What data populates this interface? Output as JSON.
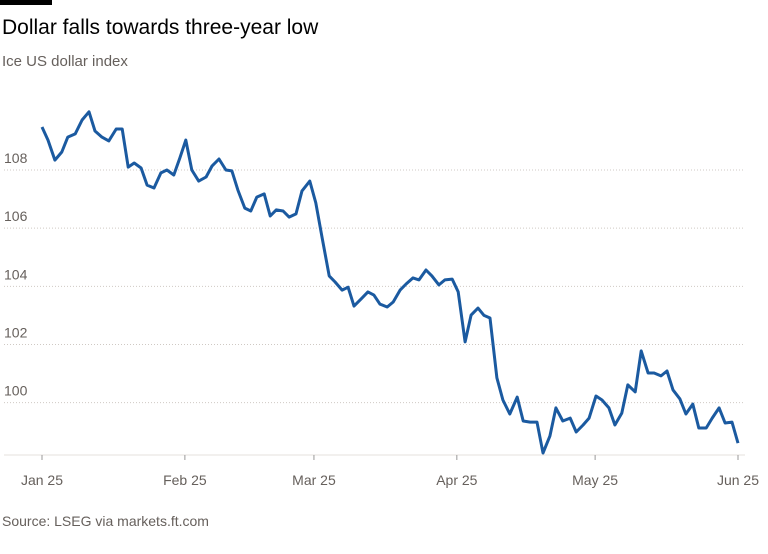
{
  "chart_data": {
    "type": "line",
    "title": "Dollar falls towards three-year low",
    "subtitle": "Ice US dollar index",
    "source": "Source: LSEG via markets.ft.com",
    "x": [
      0,
      1.3,
      2.8,
      4.3,
      5.6,
      7.2,
      8.7,
      10.2,
      11.5,
      13.0,
      14.5,
      16.1,
      17.4,
      18.7,
      20.0,
      21.5,
      22.8,
      24.3,
      25.8,
      27.1,
      28.6,
      29.9,
      31.2,
      32.5,
      34.0,
      35.6,
      36.9,
      38.4,
      39.9,
      41.2,
      42.5,
      44.0,
      45.3,
      46.6,
      48.2,
      49.5,
      50.8,
      52.3,
      53.6,
      55.1,
      56.4,
      58.1,
      59.4,
      60.7,
      62.3,
      63.6,
      65.1,
      66.4,
      67.7,
      69.2,
      70.7,
      72.0,
      73.3,
      74.9,
      76.2,
      77.7,
      79.0,
      80.5,
      81.8,
      83.3,
      84.6,
      86.1,
      87.4,
      89.0,
      90.3,
      91.8,
      93.1,
      94.6,
      95.9,
      97.2,
      98.7,
      100.0,
      101.5,
      103.1,
      104.4,
      105.9,
      107.4,
      108.7,
      110.2,
      111.5,
      113.0,
      114.6,
      115.9,
      117.4,
      118.7,
      120.2,
      121.5,
      123.0,
      124.3,
      125.8,
      127.1,
      128.7,
      130.0,
      131.5,
      132.8,
      134.3,
      135.6,
      136.9,
      138.4,
      139.7,
      141.2,
      142.5,
      144.1,
      145.4,
      146.9,
      148.2,
      149.7,
      151.0
    ],
    "series": [
      {
        "name": "Ice US dollar index",
        "color": "#1b5aa0",
        "values": [
          109.48,
          109.03,
          108.34,
          108.62,
          109.13,
          109.24,
          109.72,
          110.0,
          109.34,
          109.13,
          109.0,
          109.41,
          109.41,
          108.1,
          108.24,
          108.07,
          107.48,
          107.38,
          107.9,
          108.0,
          107.83,
          108.41,
          109.03,
          108.0,
          107.62,
          107.76,
          108.14,
          108.38,
          108.0,
          107.97,
          107.31,
          106.69,
          106.59,
          107.07,
          107.18,
          106.42,
          106.63,
          106.59,
          106.38,
          106.49,
          107.28,
          107.62,
          106.87,
          105.73,
          104.36,
          104.15,
          103.87,
          103.97,
          103.32,
          103.56,
          103.81,
          103.7,
          103.39,
          103.29,
          103.46,
          103.87,
          104.08,
          104.29,
          104.22,
          104.56,
          104.36,
          104.05,
          104.22,
          104.25,
          103.81,
          102.09,
          103.01,
          103.25,
          103.0,
          102.91,
          100.85,
          100.09,
          99.61,
          100.19,
          99.37,
          99.33,
          99.33,
          98.27,
          98.85,
          99.82,
          99.37,
          99.47,
          98.99,
          99.23,
          99.47,
          100.23,
          100.09,
          99.82,
          99.23,
          99.64,
          100.61,
          100.37,
          101.78,
          101.02,
          101.02,
          100.92,
          101.09,
          100.44,
          100.13,
          99.61,
          99.95,
          99.13,
          99.13,
          99.47,
          99.82,
          99.3,
          99.33,
          98.61
        ]
      }
    ],
    "xlim": [
      0,
      151
    ],
    "xticks": [
      {
        "value": 0,
        "label": "Jan 25"
      },
      {
        "value": 31,
        "label": "Feb 25"
      },
      {
        "value": 59,
        "label": "Mar 25"
      },
      {
        "value": 90,
        "label": "Apr 25"
      },
      {
        "value": 120,
        "label": "May 25"
      },
      {
        "value": 151,
        "label": "Jun 25"
      }
    ],
    "ylim": [
      98.2,
      110.6
    ],
    "yticks": [
      100,
      102,
      104,
      106,
      108
    ],
    "grid": true
  }
}
